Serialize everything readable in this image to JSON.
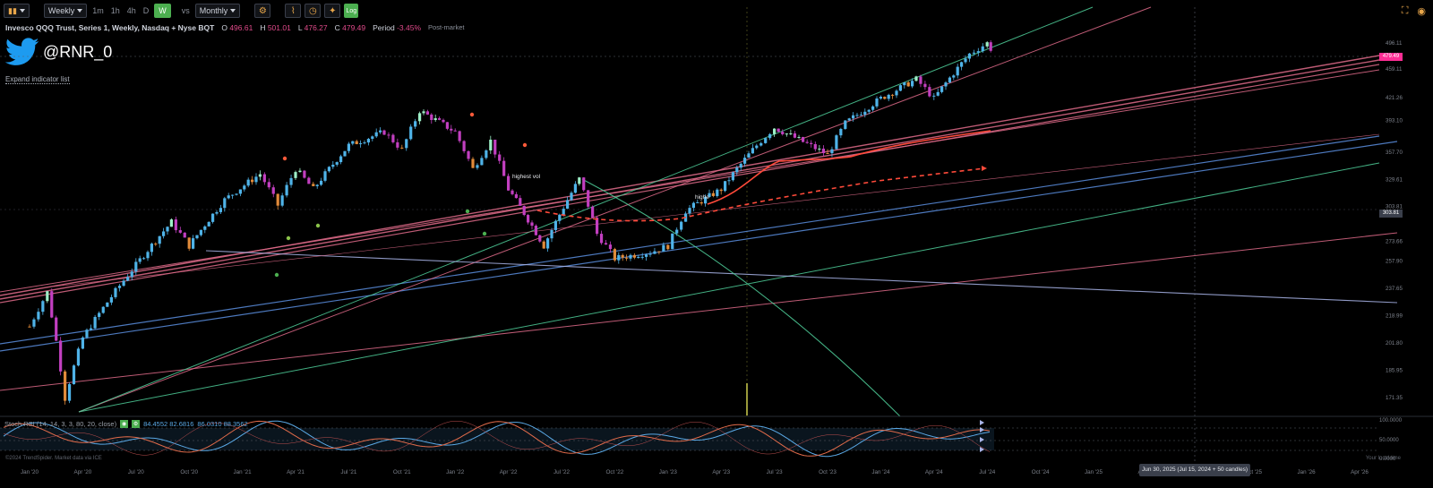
{
  "toolbar": {
    "chart_type_icon": "candles-icon",
    "interval_select": "Weekly",
    "intervals": [
      "1m",
      "1h",
      "4h",
      "D",
      "W"
    ],
    "active_interval": "W",
    "vs_label": "vs",
    "compare_select": "Monthly",
    "log_label": "Log"
  },
  "legend": {
    "symbol": "Invesco QQQ Trust, Series 1, Weekly, Nasdaq + Nyse BQT",
    "open_label": "O",
    "open": "496.61",
    "high_label": "H",
    "high": "501.01",
    "low_label": "L",
    "low": "476.27",
    "close_label": "C",
    "close": "479.49",
    "period_label": "Period",
    "period": "-3.45%",
    "session": "Post-market"
  },
  "watermark": {
    "handle": "@RNR_0",
    "logo": "twitter-bird-icon"
  },
  "expand_label": "Expand indicator list",
  "annotations": {
    "highest_vol_1": "highest vol",
    "highest_vol_2": "highe"
  },
  "price_flags": {
    "last": "479.49",
    "cross": "303.81"
  },
  "stoch": {
    "title": "Stoch RSI (14, 14, 3, 3, 80, 20, close)",
    "k_value": "84.4552 82.6816",
    "d_value": "86.0310 88.3562",
    "levels": [
      "100.0000",
      "50.0000",
      "0.0000"
    ]
  },
  "footer": {
    "copyright": "©2024 TrendSpider. Market data via ICE",
    "local_time": "Your local time",
    "crosshair_date": "Jun 30, 2025 (Jul 15, 2024 + 50 candles)"
  },
  "colors": {
    "background": "#000000",
    "up_candle": "#4fb3e8",
    "down_candle": "#c23fc0",
    "up_light": "#9ef0c8",
    "pink_line": "#e06b8a",
    "blue_line": "#5b8fe0",
    "green_line": "#4fcf9a",
    "lavender_line": "#a9b4e8",
    "ma_red": "#ff4a3a",
    "flag_pink": "#ff2d95"
  },
  "chart_data": {
    "type": "candlestick",
    "scale": "log",
    "y_ticks": [
      496.11,
      459.11,
      421.26,
      393.1,
      357.7,
      329.61,
      303.81,
      273.66,
      257.9,
      237.65,
      218.99,
      201.8,
      185.95,
      171.35
    ],
    "x_ticks": [
      "Jan '20",
      "Apr '20",
      "Jul '20",
      "Oct '20",
      "Jan '21",
      "Apr '21",
      "Jul '21",
      "Oct '21",
      "Jan '22",
      "Apr '22",
      "Jul '22",
      "Oct '22",
      "Jan '23",
      "Apr '23",
      "Jul '23",
      "Oct '23",
      "Jan '24",
      "Apr '24",
      "Jul '24",
      "Oct '24",
      "Jan '25",
      "Apr '25",
      "Jul '25",
      "Oct '25",
      "Jan '26",
      "Apr '26"
    ],
    "ohlc_last": {
      "open": 496.61,
      "high": 501.01,
      "low": 476.27,
      "close": 479.49
    },
    "period_change_pct": -3.45,
    "approx_price_path": [
      [
        "Jan '20",
        212
      ],
      [
        "Feb '20",
        235
      ],
      [
        "Mar '20",
        171
      ],
      [
        "Apr '20",
        205
      ],
      [
        "Jul '20",
        255
      ],
      [
        "Sep '20",
        290
      ],
      [
        "Oct '20",
        270
      ],
      [
        "Dec '20",
        310
      ],
      [
        "Feb '21",
        335
      ],
      [
        "Mar '21",
        305
      ],
      [
        "Apr '21",
        340
      ],
      [
        "May '21",
        320
      ],
      [
        "Jul '21",
        365
      ],
      [
        "Sep '21",
        380
      ],
      [
        "Oct '21",
        360
      ],
      [
        "Nov '21",
        405
      ],
      [
        "Jan '22",
        380
      ],
      [
        "Feb '22",
        340
      ],
      [
        "Mar '22",
        370
      ],
      [
        "Apr '22",
        320
      ],
      [
        "Jun '22",
        270
      ],
      [
        "Aug '22",
        330
      ],
      [
        "Sep '22",
        280
      ],
      [
        "Oct '22",
        260
      ],
      [
        "Dec '22",
        265
      ],
      [
        "Jan '23",
        270
      ],
      [
        "Feb '23",
        300
      ],
      [
        "Apr '23",
        320
      ],
      [
        "Jun '23",
        365
      ],
      [
        "Jul '23",
        385
      ],
      [
        "Oct '23",
        355
      ],
      [
        "Nov '23",
        390
      ],
      [
        "Jan '24",
        420
      ],
      [
        "Mar '24",
        445
      ],
      [
        "Apr '24",
        420
      ],
      [
        "Jun '24",
        480
      ],
      [
        "Jul '24",
        496
      ],
      [
        "Jul '24 last",
        479.49
      ]
    ],
    "grid": false
  }
}
